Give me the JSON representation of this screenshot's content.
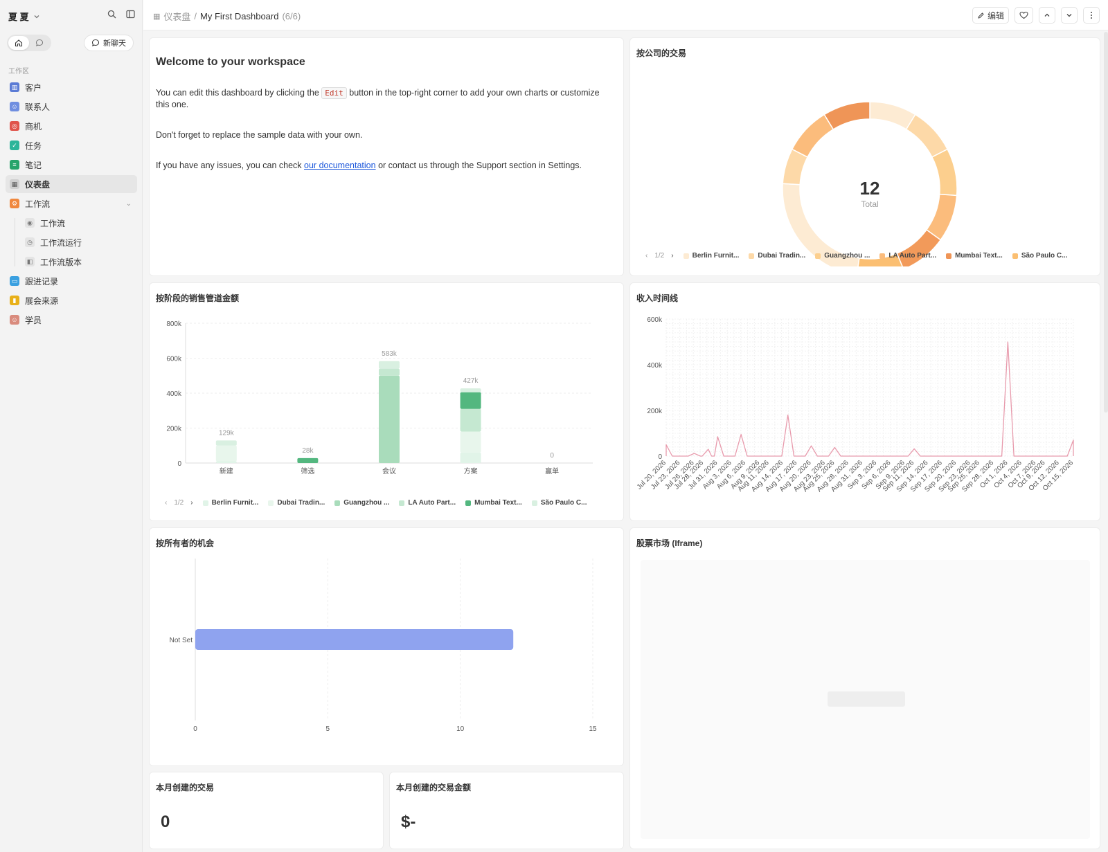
{
  "workspace": {
    "name": "夏 夏"
  },
  "sidebar": {
    "new_chat": "新聊天",
    "section_label": "工作区",
    "items": [
      {
        "label": "客户",
        "icon": "building-icon",
        "color": "#5b7bd5"
      },
      {
        "label": "联系人",
        "icon": "person-icon",
        "color": "#6f8ee0"
      },
      {
        "label": "商机",
        "icon": "target-icon",
        "color": "#e0544b"
      },
      {
        "label": "任务",
        "icon": "checkbox-icon",
        "color": "#2bb59a"
      },
      {
        "label": "笔记",
        "icon": "note-icon",
        "color": "#26a46b"
      },
      {
        "label": "仪表盘",
        "icon": "dashboard-icon",
        "color": "#888888"
      },
      {
        "label": "工作流",
        "icon": "gear-icon",
        "color": "#f0883e"
      },
      {
        "label": "工作流",
        "icon": "workflow-icon",
        "color": "#9a9a9a"
      },
      {
        "label": "工作流运行",
        "icon": "history-icon",
        "color": "#9a9a9a"
      },
      {
        "label": "工作流版本",
        "icon": "version-icon",
        "color": "#9a9a9a"
      },
      {
        "label": "跟进记录",
        "icon": "message-icon",
        "color": "#3aa0e0"
      },
      {
        "label": "展会来源",
        "icon": "book-icon",
        "color": "#e8b018"
      },
      {
        "label": "学员",
        "icon": "person-icon",
        "color": "#d98b7d"
      }
    ]
  },
  "topbar": {
    "crumb_root": "仪表盘",
    "crumb_sep": "/",
    "title": "My First Dashboard",
    "count": "(6/6)",
    "edit_label": "编辑"
  },
  "welcome": {
    "heading": "Welcome to your workspace",
    "p1_before": "You can edit this dashboard by clicking the",
    "p1_code": "Edit",
    "p1_after": "button in the top-right corner to add your own charts or customize this one.",
    "p2": "Don't forget to replace the sample data with your own.",
    "p3_before": "If you have any issues, you can check",
    "p3_link": "our documentation",
    "p3_after": "or contact us through the Support section in Settings."
  },
  "legend_pager": "1/2",
  "company_legend": [
    "Berlin Furnit...",
    "Dubai Tradin...",
    "Guangzhou ...",
    "LA Auto Part...",
    "Mumbai Text...",
    "São Paulo C..."
  ],
  "cards": {
    "donut_title": "按公司的交易",
    "pipeline_title": "按阶段的销售管道金额",
    "revenue_title": "收入时间线",
    "owner_title": "按所有者的机会",
    "stock_title": "股票市场 (Iframe)",
    "deals_month_title": "本月创建的交易",
    "deals_month_value": "0",
    "amount_month_title": "本月创建的交易金额",
    "amount_month_value": "$-"
  },
  "chart_data": [
    {
      "type": "pie",
      "title": "按公司的交易",
      "center_value": "12",
      "center_label": "Total",
      "slices": [
        {
          "value": 1,
          "color": "#fdebd3"
        },
        {
          "value": 1,
          "color": "#fdd9a8"
        },
        {
          "value": 1,
          "color": "#fccf8e"
        },
        {
          "value": 1,
          "color": "#fbbc7c"
        },
        {
          "value": 1,
          "color": "#f29a5a"
        },
        {
          "value": 1,
          "color": "#fbbf72"
        },
        {
          "value": 2.7,
          "color": "#fdebd3"
        },
        {
          "value": 0.75,
          "color": "#fdd9a8"
        },
        {
          "value": 1,
          "color": "#fbbc7c"
        },
        {
          "value": 1,
          "color": "#ef9557"
        }
      ]
    },
    {
      "type": "bar",
      "title": "按阶段的销售管道金额",
      "categories": [
        "新建",
        "筛选",
        "会议",
        "方案",
        "赢单"
      ],
      "totals": [
        129,
        28,
        583,
        427,
        0
      ],
      "total_labels": [
        "129k",
        "28k",
        "583k",
        "427k",
        "0"
      ],
      "ylim": [
        0,
        800
      ],
      "yticks": [
        "0",
        "200k",
        "400k",
        "600k",
        "800k"
      ],
      "series": [
        {
          "name": "Berlin Furnit...",
          "color": "#e1f4e8",
          "values": [
            10,
            0,
            0,
            60,
            0
          ]
        },
        {
          "name": "Dubai Tradin...",
          "color": "#e8f6ec",
          "values": [
            90,
            0,
            0,
            120,
            0
          ]
        },
        {
          "name": "Guangzhou ...",
          "color": "#a9dcbb",
          "values": [
            0,
            0,
            500,
            0,
            0
          ]
        },
        {
          "name": "LA Auto Part...",
          "color": "#c5e8d1",
          "values": [
            0,
            0,
            40,
            130,
            0
          ]
        },
        {
          "name": "Mumbai Text...",
          "color": "#53b77f",
          "values": [
            0,
            28,
            0,
            95,
            0
          ]
        },
        {
          "name": "São Paulo C...",
          "color": "#d9f0e1",
          "values": [
            29,
            0,
            43,
            22,
            0
          ]
        }
      ]
    },
    {
      "type": "line",
      "title": "收入时间线",
      "ylim": [
        0,
        600
      ],
      "yticks": [
        "0",
        "200k",
        "400k",
        "600k"
      ],
      "color": "#e89aac",
      "x_labels": [
        "Jul 20, 2026",
        "Jul 23, 2026",
        "Jul 26, 2026",
        "Jul 28, 2026",
        "Jul 31, 2026",
        "Aug 3, 2026",
        "Aug 6, 2026",
        "Aug 9, 2026",
        "Aug 11, 2026",
        "Aug 14, 2026",
        "Aug 17, 2026",
        "Aug 20, 2026",
        "Aug 23, 2026",
        "Aug 25, 2026",
        "Aug 28, 2026",
        "Aug 31, 2026",
        "Sep 3, 2026",
        "Sep 6, 2026",
        "Sep 9, 2026",
        "Sep 11, 2026",
        "Sep 14, 2026",
        "Sep 17, 2026",
        "Sep 20, 2026",
        "Sep 23, 2026",
        "Sep 25, 2026",
        "Sep 28, 2026",
        "Oct 1, 2026",
        "Oct 4, 2026",
        "Oct 7, 2026",
        "Oct 9, 2026",
        "Oct 12, 2026",
        "Oct 15, 2026"
      ],
      "peaks": [
        {
          "date": "Jul 20, 2026",
          "value": 50
        },
        {
          "date": "Jul 26, 2026",
          "value": 12
        },
        {
          "date": "Jul 29, 2026",
          "value": 30
        },
        {
          "date": "Jul 31, 2026",
          "value": 85
        },
        {
          "date": "Aug 5, 2026",
          "value": 95
        },
        {
          "date": "Aug 15, 2026",
          "value": 180
        },
        {
          "date": "Aug 20, 2026",
          "value": 45
        },
        {
          "date": "Aug 25, 2026",
          "value": 38
        },
        {
          "date": "Sep 11, 2026",
          "value": 32
        },
        {
          "date": "Oct 1, 2026",
          "value": 500
        },
        {
          "date": "Oct 15, 2026",
          "value": 70
        }
      ]
    },
    {
      "type": "bar",
      "orientation": "horizontal",
      "title": "按所有者的机会",
      "categories": [
        "Not Set"
      ],
      "values": [
        12
      ],
      "xlim": [
        0,
        15
      ],
      "xticks": [
        "0",
        "5",
        "10",
        "15"
      ],
      "color": "#8fa3ef"
    }
  ]
}
